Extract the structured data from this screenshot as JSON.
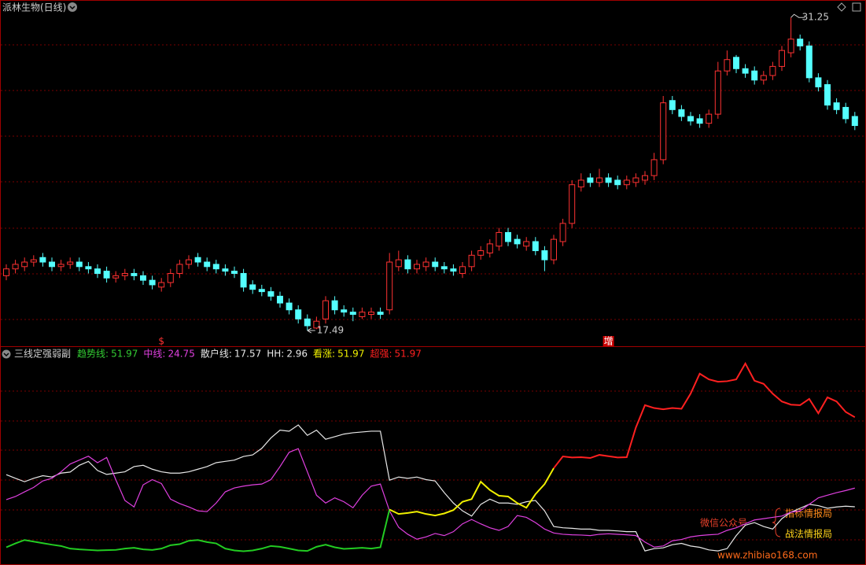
{
  "chart_data": [
    {
      "type": "candlestick",
      "title": "派林生物(日线)",
      "ylim": [
        16.8,
        31.5
      ],
      "up_color": "#ff3232",
      "down_color": "#54ffff",
      "open": [
        19.9,
        20.2,
        20.3,
        20.5,
        20.7,
        20.5,
        20.3,
        20.4,
        20.5,
        20.3,
        20.2,
        20.1,
        19.8,
        19.9,
        20.0,
        19.9,
        19.7,
        19.4,
        19.6,
        20.0,
        20.4,
        20.7,
        20.5,
        20.4,
        20.2,
        20.1,
        20.0,
        19.5,
        19.3,
        19.2,
        19.0,
        18.7,
        18.4,
        18.0,
        17.6,
        18.0,
        18.8,
        18.4,
        18.3,
        18.1,
        18.2,
        18.3,
        18.4,
        20.3,
        20.6,
        20.2,
        20.3,
        20.5,
        20.3,
        20.2,
        20.0,
        20.3,
        20.8,
        20.9,
        21.2,
        21.8,
        21.5,
        21.2,
        21.4,
        21.0,
        20.6,
        21.4,
        22.2,
        23.8,
        24.2,
        24.0,
        24.2,
        24.1,
        23.9,
        24.0,
        24.1,
        24.3,
        25.0,
        27.6,
        27.2,
        26.9,
        26.8,
        26.6,
        27.0,
        28.9,
        29.5,
        29.0,
        28.9,
        28.5,
        28.7,
        29.1,
        29.7,
        30.3,
        30.0,
        28.6,
        28.3,
        27.5,
        27.3,
        26.9
      ],
      "high": [
        20.4,
        20.6,
        20.7,
        20.8,
        20.9,
        20.7,
        20.6,
        20.7,
        20.7,
        20.5,
        20.4,
        20.3,
        20.1,
        20.2,
        20.2,
        20.1,
        19.9,
        19.8,
        20.2,
        20.6,
        20.8,
        20.9,
        20.7,
        20.6,
        20.4,
        20.3,
        20.2,
        19.7,
        19.5,
        19.4,
        19.2,
        18.9,
        18.6,
        18.2,
        18.1,
        19.0,
        19.0,
        18.6,
        18.5,
        18.5,
        18.5,
        18.5,
        20.9,
        21.0,
        20.8,
        20.6,
        20.7,
        20.7,
        20.5,
        20.4,
        20.5,
        21.0,
        21.2,
        21.5,
        22.0,
        22.0,
        21.7,
        21.6,
        21.6,
        21.2,
        21.7,
        22.4,
        24.1,
        24.4,
        24.4,
        24.6,
        24.4,
        24.3,
        24.3,
        24.4,
        24.5,
        25.3,
        27.8,
        27.8,
        27.4,
        27.1,
        27.0,
        27.2,
        29.3,
        29.8,
        29.6,
        29.2,
        29.1,
        28.9,
        29.3,
        30.0,
        31.25,
        30.5,
        30.2,
        28.8,
        28.5,
        27.7,
        27.5,
        27.1
      ],
      "low": [
        19.7,
        20.0,
        20.1,
        20.3,
        20.3,
        20.1,
        20.1,
        20.2,
        20.1,
        20.0,
        19.8,
        19.6,
        19.6,
        19.7,
        19.7,
        19.5,
        19.3,
        19.2,
        19.4,
        19.8,
        20.2,
        20.3,
        20.1,
        20.0,
        19.9,
        19.8,
        19.2,
        19.1,
        19.0,
        18.8,
        18.5,
        18.2,
        17.8,
        17.49,
        17.55,
        17.8,
        18.2,
        18.1,
        17.9,
        18.0,
        18.0,
        18.0,
        18.2,
        20.1,
        20.0,
        20.0,
        20.1,
        20.1,
        20.0,
        19.9,
        19.8,
        20.1,
        20.6,
        20.7,
        21.0,
        21.2,
        21.1,
        21.0,
        20.8,
        20.1,
        20.4,
        21.2,
        22.0,
        23.6,
        23.8,
        23.8,
        23.8,
        23.7,
        23.7,
        23.8,
        23.9,
        24.1,
        24.8,
        27.0,
        26.7,
        26.5,
        26.4,
        26.4,
        26.8,
        28.7,
        28.8,
        28.6,
        28.3,
        28.3,
        28.5,
        28.9,
        29.5,
        29.8,
        28.4,
        28.0,
        27.2,
        27.0,
        26.6,
        26.3
      ],
      "close": [
        20.2,
        20.4,
        20.5,
        20.6,
        20.5,
        20.3,
        20.4,
        20.5,
        20.3,
        20.2,
        20.0,
        19.8,
        19.9,
        20.0,
        19.9,
        19.7,
        19.5,
        19.6,
        20.0,
        20.4,
        20.6,
        20.5,
        20.3,
        20.2,
        20.1,
        20.0,
        19.4,
        19.3,
        19.2,
        19.0,
        18.7,
        18.4,
        18.0,
        17.7,
        17.9,
        18.8,
        18.4,
        18.3,
        18.2,
        18.3,
        18.3,
        18.2,
        20.5,
        20.6,
        20.2,
        20.4,
        20.5,
        20.3,
        20.2,
        20.1,
        20.3,
        20.8,
        21.0,
        21.3,
        21.8,
        21.4,
        21.3,
        21.4,
        21.0,
        20.6,
        21.5,
        22.2,
        23.9,
        24.1,
        24.0,
        24.2,
        24.0,
        23.9,
        24.1,
        24.2,
        24.3,
        25.0,
        27.5,
        27.2,
        26.9,
        26.7,
        26.6,
        27.0,
        28.9,
        29.4,
        29.0,
        28.8,
        28.5,
        28.7,
        29.1,
        29.8,
        30.3,
        30.0,
        28.6,
        28.2,
        27.4,
        27.2,
        26.8,
        26.5
      ],
      "signals": [
        {
          "label": "$",
          "bar": 17,
          "color": "#ff3232"
        },
        {
          "label": "增",
          "bar": 66,
          "color": "#cc0000"
        }
      ]
    },
    {
      "type": "line",
      "title": "三线定强弱副",
      "ylim": [
        -4.8,
        74.7
      ],
      "legend": [
        {
          "name": "趋势线:",
          "value": 51.97,
          "color": "#33cc33"
        },
        {
          "name": "中线:",
          "value": 24.75,
          "color": "#e040e0"
        },
        {
          "name": "散户线:",
          "value": 17.57,
          "color": "#e8e8e8"
        },
        {
          "name": "HH:",
          "value": 2.96,
          "color": "#e8e8e8"
        },
        {
          "name": "看涨:",
          "value": 51.97,
          "color": "#f0f000"
        },
        {
          "name": "超强:",
          "value": 51.97,
          "color": "#ff2020"
        }
      ],
      "series": [
        {
          "color": "#e8e8e8",
          "values": [
            29.9,
            28.5,
            27.2,
            28.5,
            29.5,
            29.0,
            30.5,
            30.9,
            33.5,
            35.0,
            31.5,
            30.0,
            30.5,
            31.0,
            33.0,
            33.5,
            32.0,
            31.0,
            30.5,
            30.5,
            31.0,
            32.0,
            33.0,
            34.5,
            35.0,
            35.5,
            36.9,
            37.5,
            40.0,
            44.0,
            47.0,
            46.6,
            49.0,
            45.0,
            47.0,
            43.5,
            44.5,
            45.5,
            46.0,
            46.3,
            46.6,
            46.6,
            27.8,
            29.0,
            28.5,
            29.0,
            28.0,
            27.5,
            23.0,
            19.0,
            16.0,
            14.0,
            18.5,
            20.5,
            19.0,
            19.0,
            18.5,
            19.5,
            20.0,
            16.0,
            10.0,
            9.5,
            9.3,
            9.0,
            9.0,
            8.5,
            8.5,
            8.3,
            8.0,
            8.0,
            0.6,
            1.5,
            1.8,
            3.0,
            3.5,
            2.5,
            2.0,
            1.0,
            0.6,
            1.5,
            6.5,
            10.5,
            11.5,
            10.0,
            9.0,
            13.0,
            15.5,
            17.0,
            18.5,
            18.0,
            17.0,
            17.5,
            17.8,
            17.57
          ]
        },
        {
          "color": "#e040e0",
          "values": [
            20.3,
            21.5,
            23.3,
            25.0,
            27.5,
            28.5,
            31.0,
            34.0,
            35.5,
            37.0,
            34.5,
            36.5,
            28.0,
            20.0,
            17.5,
            26.0,
            28.0,
            26.5,
            20.5,
            18.8,
            17.5,
            16.0,
            15.7,
            19.0,
            23.3,
            24.8,
            25.5,
            26.0,
            26.3,
            28.0,
            33.0,
            38.5,
            39.9,
            31.0,
            22.0,
            19.0,
            21.0,
            19.5,
            17.2,
            22.0,
            25.5,
            26.3,
            16.0,
            9.7,
            7.0,
            5.1,
            6.0,
            7.3,
            6.5,
            8.0,
            11.0,
            12.7,
            11.0,
            9.5,
            8.5,
            10.0,
            14.2,
            13.5,
            11.5,
            9.0,
            7.5,
            7.0,
            6.8,
            6.7,
            6.5,
            7.0,
            7.2,
            7.0,
            6.8,
            6.5,
            4.0,
            2.1,
            2.5,
            4.5,
            5.0,
            6.0,
            6.5,
            6.8,
            7.0,
            8.5,
            9.5,
            11.0,
            12.5,
            13.0,
            13.5,
            14.0,
            15.5,
            16.0,
            18.5,
            21.0,
            22.0,
            23.0,
            23.8,
            24.75
          ]
        },
        {
          "color": "#22cc22",
          "values": [
            2.0,
            3.5,
            4.8,
            4.2,
            3.6,
            3.0,
            2.5,
            1.5,
            1.2,
            1.0,
            0.8,
            0.9,
            1.0,
            1.5,
            1.8,
            1.2,
            1.0,
            1.5,
            2.8,
            3.2,
            4.5,
            4.8,
            4.0,
            3.5,
            1.5,
            0.8,
            0.5,
            0.8,
            1.5,
            2.5,
            2.2,
            1.5,
            0.8,
            0.6,
            2.2,
            3.0,
            2.0,
            1.4,
            1.6,
            1.8,
            1.5,
            2.0,
            16.5,
            null,
            null,
            null,
            null,
            null,
            null,
            null,
            null,
            null,
            null,
            null,
            null,
            null,
            null,
            null,
            null,
            null,
            null,
            null,
            null,
            null,
            null,
            null,
            null,
            null,
            null,
            null,
            null,
            null,
            null,
            null,
            null,
            null,
            null,
            null,
            null,
            null,
            null,
            null,
            null,
            null,
            null,
            null,
            null,
            null,
            null,
            null,
            null,
            null,
            null,
            null
          ]
        },
        {
          "color": "#f0f000",
          "values": [
            null,
            null,
            null,
            null,
            null,
            null,
            null,
            null,
            null,
            null,
            null,
            null,
            null,
            null,
            null,
            null,
            null,
            null,
            null,
            null,
            null,
            null,
            null,
            null,
            null,
            null,
            null,
            null,
            null,
            null,
            null,
            null,
            null,
            null,
            null,
            null,
            null,
            null,
            null,
            null,
            null,
            null,
            16.5,
            14.8,
            15.2,
            15.7,
            14.8,
            14.2,
            15.0,
            16.3,
            19.5,
            20.5,
            27.2,
            24.0,
            21.8,
            21.5,
            19.0,
            17.2,
            22.4,
            26.3,
            32.4,
            null,
            null,
            null,
            null,
            null,
            null,
            null,
            null,
            null,
            null,
            null,
            null,
            null,
            null,
            null,
            null,
            null,
            null,
            null,
            null,
            null,
            null,
            null,
            null,
            null,
            null,
            null,
            null,
            null,
            null,
            null,
            null,
            null
          ]
        },
        {
          "color": "#ff2020",
          "values": [
            null,
            null,
            null,
            null,
            null,
            null,
            null,
            null,
            null,
            null,
            null,
            null,
            null,
            null,
            null,
            null,
            null,
            null,
            null,
            null,
            null,
            null,
            null,
            null,
            null,
            null,
            null,
            null,
            null,
            null,
            null,
            null,
            null,
            null,
            null,
            null,
            null,
            null,
            null,
            null,
            null,
            null,
            null,
            null,
            null,
            null,
            null,
            null,
            null,
            null,
            null,
            null,
            null,
            null,
            null,
            null,
            null,
            null,
            null,
            null,
            32.4,
            36.9,
            36.5,
            36.6,
            36.3,
            37.5,
            37.0,
            36.5,
            36.6,
            48.0,
            56.6,
            55.5,
            55.0,
            55.5,
            55.2,
            61.0,
            68.7,
            66.5,
            65.6,
            65.8,
            66.5,
            72.6,
            66.0,
            64.8,
            61.0,
            58.0,
            56.8,
            56.6,
            59.0,
            53.5,
            59.6,
            58.0,
            54.0,
            51.97
          ]
        }
      ]
    }
  ],
  "watermark": {
    "label": "微信公众号",
    "line1": "指标情报局",
    "line2": "战法情报局",
    "url": "www.zhibiao168.com"
  }
}
